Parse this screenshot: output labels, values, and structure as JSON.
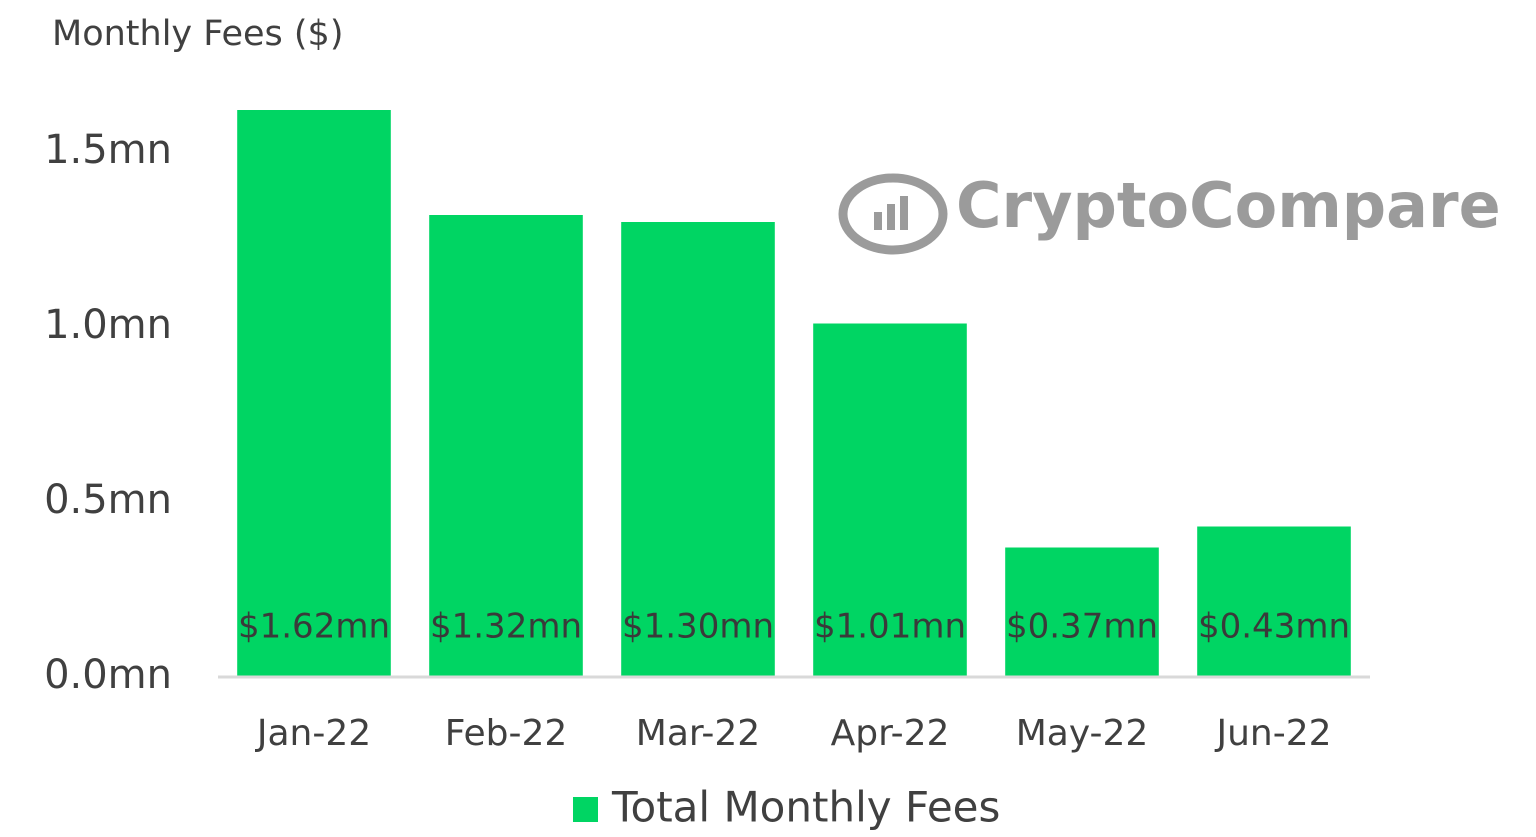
{
  "chart_data": {
    "type": "bar",
    "title": "Monthly Fees ($)",
    "watermark": "CryptoCompare",
    "categories": [
      "Jan-22",
      "Feb-22",
      "Mar-22",
      "Apr-22",
      "May-22",
      "Jun-22"
    ],
    "series": [
      {
        "name": "Total Monthly Fees",
        "color": "#00d563",
        "values": [
          1620000,
          1320000,
          1300000,
          1010000,
          370000,
          430000
        ],
        "value_labels": [
          "$1.62mn",
          "$1.32mn",
          "$1.30mn",
          "$1.01mn",
          "$0.37mn",
          "$0.43mn"
        ]
      }
    ],
    "ylim": [
      0,
      1750000
    ],
    "yticks": [
      {
        "value": 0,
        "label": "0.0mn"
      },
      {
        "value": 500000,
        "label": "0.5mn"
      },
      {
        "value": 1000000,
        "label": "1.0mn"
      },
      {
        "value": 1500000,
        "label": "1.5mn"
      }
    ],
    "grid": false,
    "legend": "bottom"
  }
}
